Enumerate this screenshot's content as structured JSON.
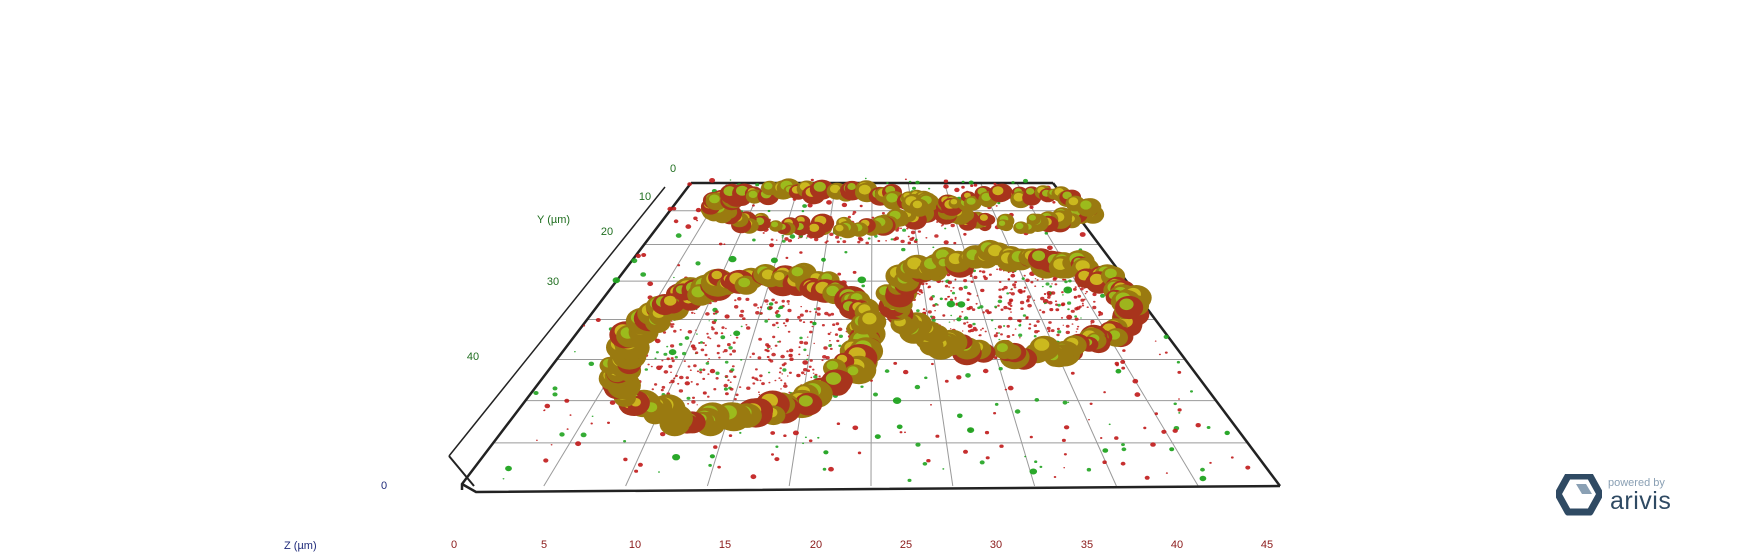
{
  "axes": {
    "x": {
      "title": "Z (µm)",
      "ticks": [
        "0",
        "5",
        "10",
        "15",
        "20",
        "25",
        "30",
        "35",
        "40",
        "45"
      ]
    },
    "y": {
      "title": "Y (µm)",
      "ticks": [
        "0",
        "10",
        "20",
        "30",
        "40"
      ]
    },
    "z": {
      "ticks": [
        "0"
      ]
    }
  },
  "branding": {
    "tagline": "powered by",
    "name": "arivis"
  },
  "colors": {
    "rings_outer": "#9a7a10",
    "rings_inner": "#d0c020",
    "particles_red": "#c01818",
    "particles_green": "#1fa31f",
    "grid": "#9a9a9a",
    "frame": "#222222"
  }
}
